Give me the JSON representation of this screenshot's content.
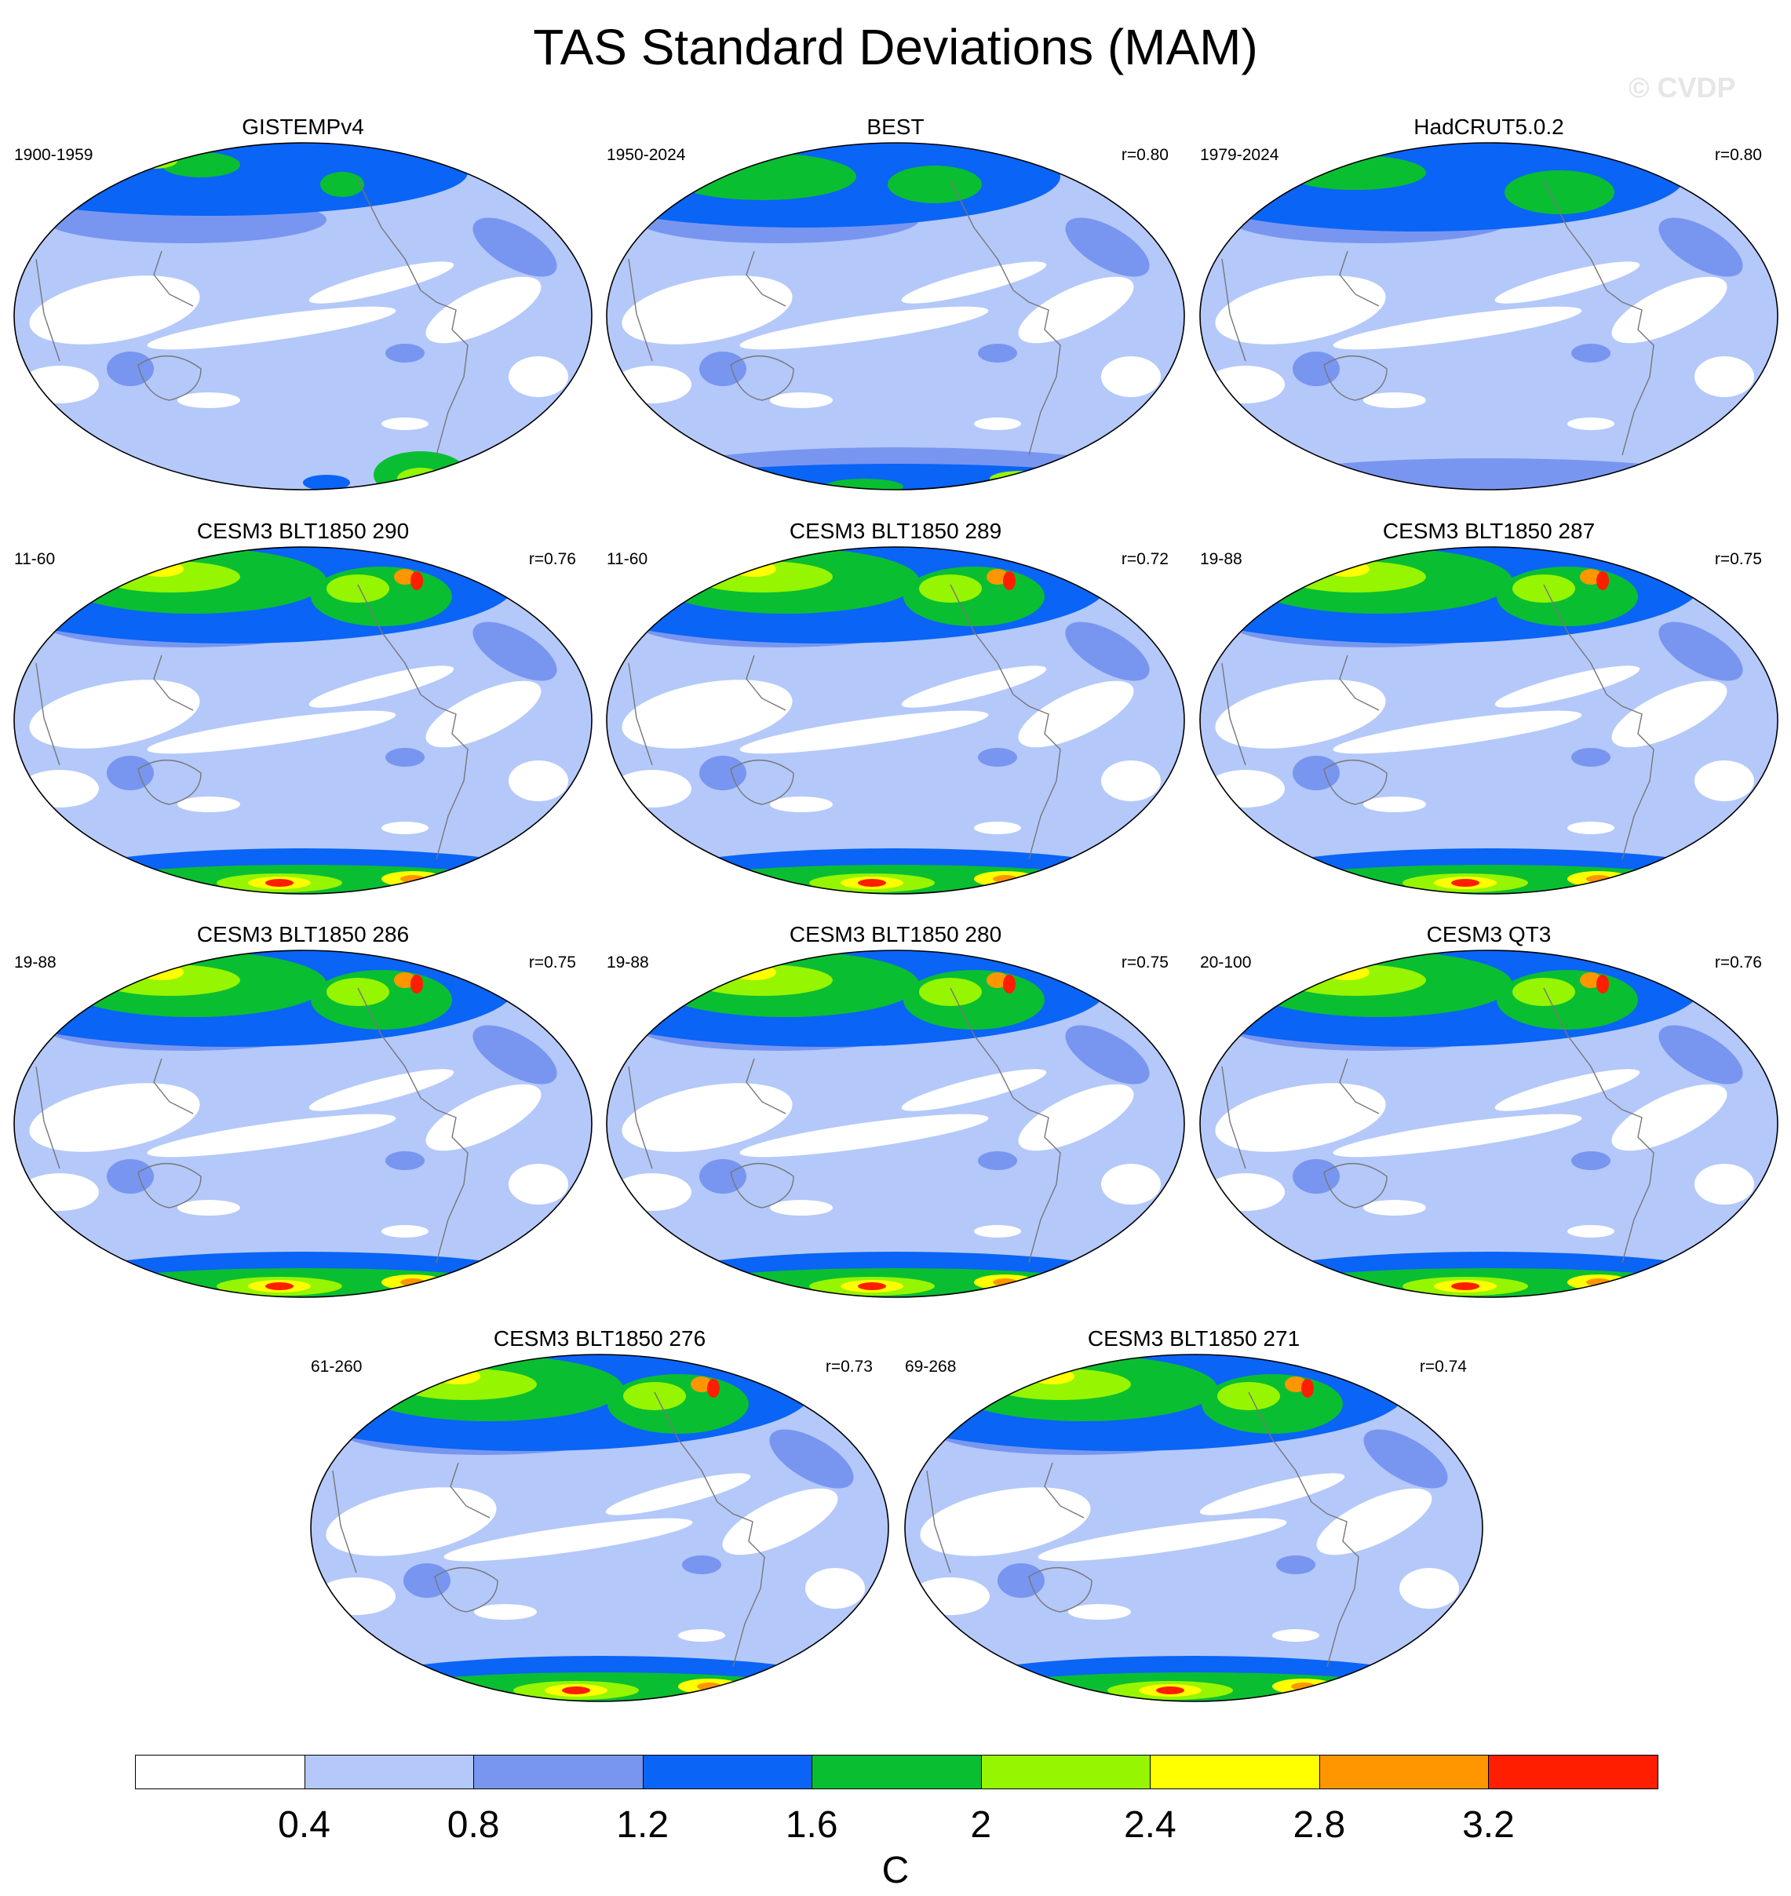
{
  "title": "TAS Standard Deviations (MAM)",
  "watermark": "© CVDP",
  "colors": [
    "#ffffff",
    "#b4c8fa",
    "#7896f0",
    "#0a64f5",
    "#0abe32",
    "#96f500",
    "#ffff00",
    "#ff9600",
    "#ff1e00"
  ],
  "chart_data": {
    "type": "heatmap",
    "title": "TAS Standard Deviations (MAM)",
    "colorbar": {
      "levels": [
        "0.4",
        "0.8",
        "1.2",
        "1.6",
        "2",
        "2.4",
        "2.8",
        "3.2"
      ],
      "unit": "C"
    },
    "panels": [
      {
        "title": "GISTEMPv4",
        "period": "1900-1959",
        "r": "",
        "kind": "obs1"
      },
      {
        "title": "BEST",
        "period": "1950-2024",
        "r": "r=0.80",
        "kind": "obs2"
      },
      {
        "title": "HadCRUT5.0.2",
        "period": "1979-2024",
        "r": "r=0.80",
        "kind": "obs3"
      },
      {
        "title": "CESM3 BLT1850 290",
        "period": "11-60",
        "r": "r=0.76",
        "kind": "model"
      },
      {
        "title": "CESM3 BLT1850 289",
        "period": "11-60",
        "r": "r=0.72",
        "kind": "model"
      },
      {
        "title": "CESM3 BLT1850 287",
        "period": "19-88",
        "r": "r=0.75",
        "kind": "model"
      },
      {
        "title": "CESM3 BLT1850 286",
        "period": "19-88",
        "r": "r=0.75",
        "kind": "model"
      },
      {
        "title": "CESM3 BLT1850 280",
        "period": "19-88",
        "r": "r=0.75",
        "kind": "model"
      },
      {
        "title": "CESM3 QT3",
        "period": "20-100",
        "r": "r=0.76",
        "kind": "model"
      },
      {
        "title": "CESM3 BLT1850 276",
        "period": "61-260",
        "r": "r=0.73",
        "kind": "model"
      },
      {
        "title": "CESM3 BLT1850 271",
        "period": "69-268",
        "r": "r=0.74",
        "kind": "model"
      }
    ]
  }
}
